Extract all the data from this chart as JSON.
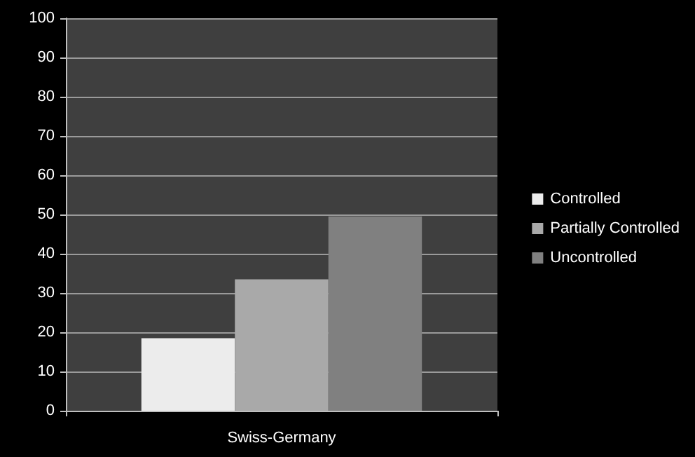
{
  "chart_data": {
    "type": "bar",
    "categories": [
      "Swiss-Germany"
    ],
    "series": [
      {
        "name": "Controlled",
        "color": "#ececec",
        "values": [
          18.5
        ]
      },
      {
        "name": "Partially Controlled",
        "color": "#a9a9a9",
        "values": [
          33.5
        ]
      },
      {
        "name": "Uncontrolled",
        "color": "#808080",
        "values": [
          49.5
        ]
      }
    ],
    "ylim": [
      0,
      100
    ],
    "yticks": [
      0,
      10,
      20,
      30,
      40,
      50,
      60,
      70,
      80,
      90,
      100
    ],
    "grid": "y",
    "legend": "right"
  }
}
